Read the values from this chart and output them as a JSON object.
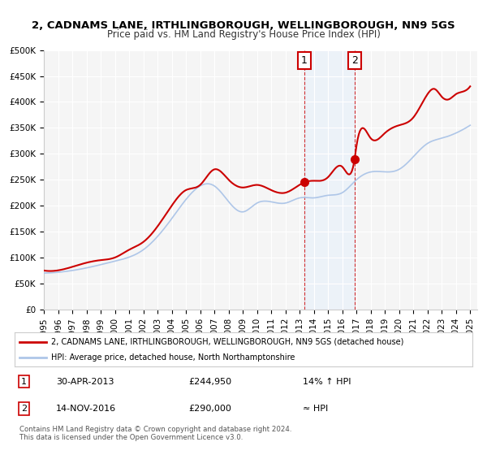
{
  "title": "2, CADNAMS LANE, IRTHLINGBOROUGH, WELLINGBOROUGH, NN9 5GS",
  "subtitle": "Price paid vs. HM Land Registry's House Price Index (HPI)",
  "legend_line1": "2, CADNAMS LANE, IRTHLINGBOROUGH, WELLINGBOROUGH, NN9 5GS (detached house)",
  "legend_line2": "HPI: Average price, detached house, North Northamptonshire",
  "annotation1_label": "1",
  "annotation1_date": "30-APR-2013",
  "annotation1_price": "£244,950",
  "annotation1_hpi": "14% ↑ HPI",
  "annotation2_label": "2",
  "annotation2_date": "14-NOV-2016",
  "annotation2_price": "£290,000",
  "annotation2_hpi": "≈ HPI",
  "footnote": "Contains HM Land Registry data © Crown copyright and database right 2024.\nThis data is licensed under the Open Government Licence v3.0.",
  "xmin": 1995.0,
  "xmax": 2025.5,
  "ymin": 0,
  "ymax": 500000,
  "yticks": [
    0,
    50000,
    100000,
    150000,
    200000,
    250000,
    300000,
    350000,
    400000,
    450000,
    500000
  ],
  "ytick_labels": [
    "£0",
    "£50K",
    "£100K",
    "£150K",
    "£200K",
    "£250K",
    "£300K",
    "£350K",
    "£400K",
    "£450K",
    "£500K"
  ],
  "background_color": "#ffffff",
  "plot_bg_color": "#f5f5f5",
  "grid_color": "#ffffff",
  "hpi_line_color": "#aec6e8",
  "price_line_color": "#cc0000",
  "shade_color": "#ddeeff",
  "marker_color": "#cc0000",
  "annotation_box_color": "#cc0000",
  "sale1_x": 2013.33,
  "sale1_y": 244950,
  "sale2_x": 2016.87,
  "sale2_y": 290000,
  "xtick_years": [
    1995,
    1996,
    1997,
    1998,
    1999,
    2000,
    2001,
    2002,
    2003,
    2004,
    2005,
    2006,
    2007,
    2008,
    2009,
    2010,
    2011,
    2012,
    2013,
    2014,
    2015,
    2016,
    2017,
    2018,
    2019,
    2020,
    2021,
    2022,
    2023,
    2024,
    2025
  ]
}
